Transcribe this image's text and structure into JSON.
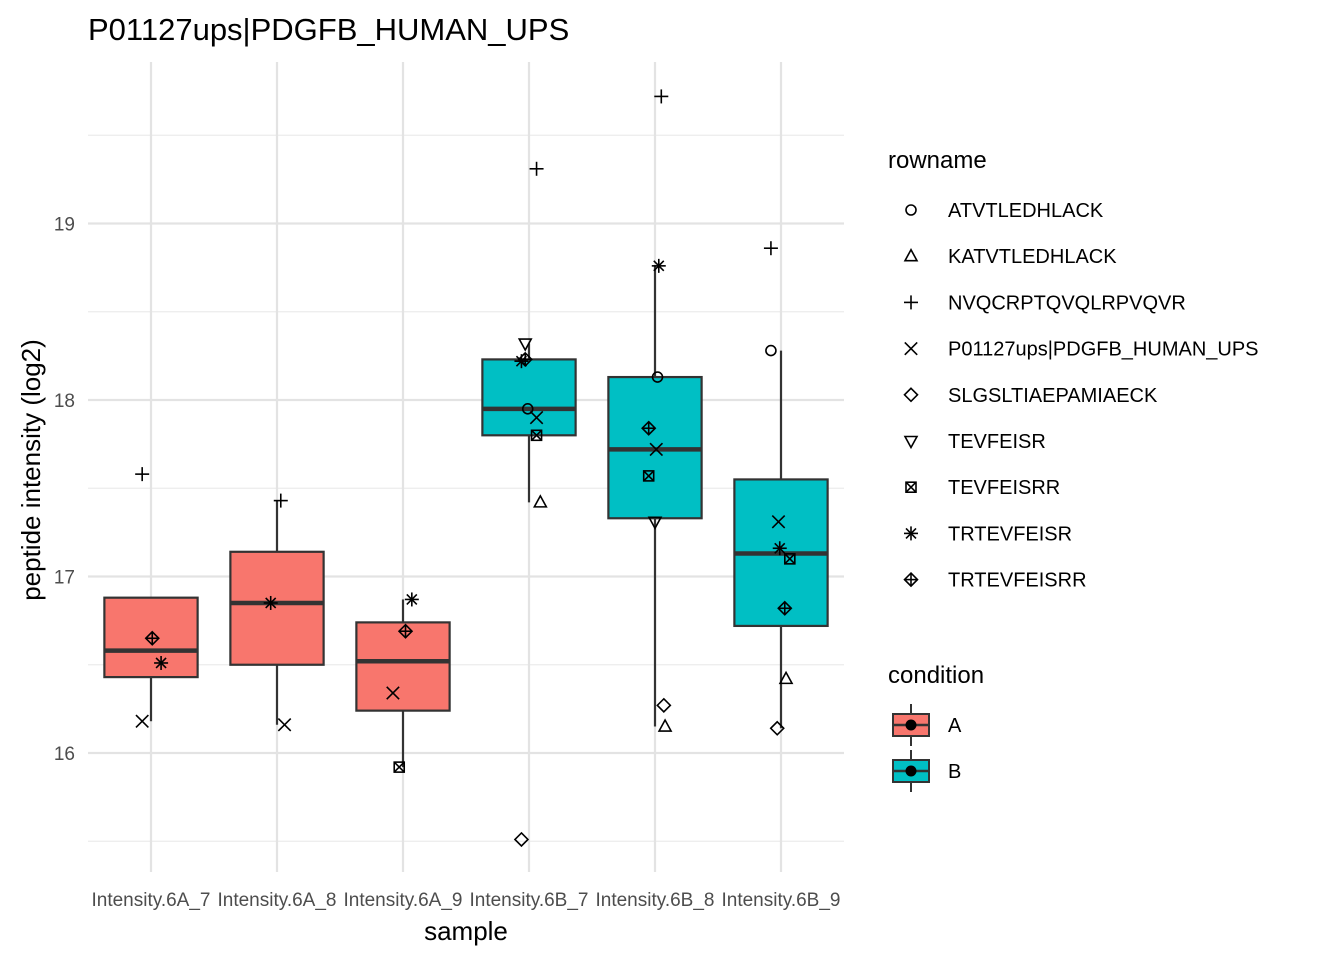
{
  "chart_data": {
    "type": "box",
    "title": "P01127ups|PDGFB_HUMAN_UPS",
    "xlabel": "sample",
    "ylabel": "peptide intensity (log2)",
    "ylim": [
      15.35,
      19.9
    ],
    "yticks": [
      16,
      17,
      18,
      19
    ],
    "grid": true,
    "legend_position": "right",
    "categories": [
      "Intensity.6A_7",
      "Intensity.6A_8",
      "Intensity.6A_9",
      "Intensity.6B_7",
      "Intensity.6B_8",
      "Intensity.6B_9"
    ],
    "conditions": [
      {
        "name": "A",
        "color": "#F8766D"
      },
      {
        "name": "B",
        "color": "#00BFC4"
      }
    ],
    "boxes": [
      {
        "sample": "Intensity.6A_7",
        "condition": "A",
        "whisker_low": 16.18,
        "q1": 16.43,
        "median": 16.58,
        "q3": 16.88,
        "whisker_high": 16.88
      },
      {
        "sample": "Intensity.6A_8",
        "condition": "A",
        "whisker_low": 16.16,
        "q1": 16.5,
        "median": 16.85,
        "q3": 17.14,
        "whisker_high": 17.43
      },
      {
        "sample": "Intensity.6A_9",
        "condition": "A",
        "whisker_low": 15.92,
        "q1": 16.24,
        "median": 16.52,
        "q3": 16.74,
        "whisker_high": 16.87
      },
      {
        "sample": "Intensity.6B_7",
        "condition": "B",
        "whisker_low": 17.42,
        "q1": 17.8,
        "median": 17.95,
        "q3": 18.23,
        "whisker_high": 18.32
      },
      {
        "sample": "Intensity.6B_8",
        "condition": "B",
        "whisker_low": 16.15,
        "q1": 17.33,
        "median": 17.72,
        "q3": 18.13,
        "whisker_high": 18.76
      },
      {
        "sample": "Intensity.6B_9",
        "condition": "B",
        "whisker_low": 16.14,
        "q1": 16.72,
        "median": 17.13,
        "q3": 17.55,
        "whisker_high": 18.28
      }
    ],
    "shape_legend_title": "rowname",
    "rownames": [
      {
        "name": "ATVTLEDHLACK",
        "shape": "circle"
      },
      {
        "name": "KATVTLEDHLACK",
        "shape": "triangle"
      },
      {
        "name": "NVQCRPTQVQLRPVQVR",
        "shape": "plus"
      },
      {
        "name": "P01127ups|PDGFB_HUMAN_UPS",
        "shape": "cross"
      },
      {
        "name": "SLGSLTIAEPAMIAECK",
        "shape": "diamond"
      },
      {
        "name": "TEVFEISR",
        "shape": "triangle-down"
      },
      {
        "name": "TEVFEISRR",
        "shape": "square-cross"
      },
      {
        "name": "TRTEVFEISR",
        "shape": "asterisk"
      },
      {
        "name": "TRTEVFEISRR",
        "shape": "diamond-plus"
      }
    ],
    "fill_legend_title": "condition",
    "points": [
      {
        "sample": "Intensity.6A_7",
        "rowname": "NVQCRPTQVQLRPVQVR",
        "y": 17.58,
        "jitter": -0.07
      },
      {
        "sample": "Intensity.6A_7",
        "rowname": "TRTEVFEISRR",
        "y": 16.65,
        "jitter": 0.01
      },
      {
        "sample": "Intensity.6A_7",
        "rowname": "TRTEVFEISR",
        "y": 16.51,
        "jitter": 0.08
      },
      {
        "sample": "Intensity.6A_7",
        "rowname": "P01127ups|PDGFB_HUMAN_UPS",
        "y": 16.18,
        "jitter": -0.07
      },
      {
        "sample": "Intensity.6A_8",
        "rowname": "NVQCRPTQVQLRPVQVR",
        "y": 17.43,
        "jitter": 0.03
      },
      {
        "sample": "Intensity.6A_8",
        "rowname": "TRTEVFEISR",
        "y": 16.85,
        "jitter": -0.05
      },
      {
        "sample": "Intensity.6A_8",
        "rowname": "P01127ups|PDGFB_HUMAN_UPS",
        "y": 16.16,
        "jitter": 0.06
      },
      {
        "sample": "Intensity.6A_9",
        "rowname": "TRTEVFEISR",
        "y": 16.87,
        "jitter": 0.07
      },
      {
        "sample": "Intensity.6A_9",
        "rowname": "TRTEVFEISRR",
        "y": 16.69,
        "jitter": 0.02
      },
      {
        "sample": "Intensity.6A_9",
        "rowname": "P01127ups|PDGFB_HUMAN_UPS",
        "y": 16.34,
        "jitter": -0.08
      },
      {
        "sample": "Intensity.6A_9",
        "rowname": "TEVFEISRR",
        "y": 15.92,
        "jitter": -0.03
      },
      {
        "sample": "Intensity.6B_7",
        "rowname": "NVQCRPTQVQLRPVQVR",
        "y": 19.31,
        "jitter": 0.06
      },
      {
        "sample": "Intensity.6B_7",
        "rowname": "TEVFEISR",
        "y": 18.32,
        "jitter": -0.03
      },
      {
        "sample": "Intensity.6B_7",
        "rowname": "TRTEVFEISRR",
        "y": 18.23,
        "jitter": -0.03
      },
      {
        "sample": "Intensity.6B_7",
        "rowname": "TRTEVFEISR",
        "y": 18.22,
        "jitter": -0.06
      },
      {
        "sample": "Intensity.6B_7",
        "rowname": "ATVTLEDHLACK",
        "y": 17.95,
        "jitter": -0.01
      },
      {
        "sample": "Intensity.6B_7",
        "rowname": "P01127ups|PDGFB_HUMAN_UPS",
        "y": 17.9,
        "jitter": 0.06
      },
      {
        "sample": "Intensity.6B_7",
        "rowname": "TEVFEISRR",
        "y": 17.8,
        "jitter": 0.06
      },
      {
        "sample": "Intensity.6B_7",
        "rowname": "KATVTLEDHLACK",
        "y": 17.42,
        "jitter": 0.09
      },
      {
        "sample": "Intensity.6B_7",
        "rowname": "SLGSLTIAEPAMIAECK",
        "y": 15.51,
        "jitter": -0.06
      },
      {
        "sample": "Intensity.6B_8",
        "rowname": "NVQCRPTQVQLRPVQVR",
        "y": 19.72,
        "jitter": 0.05
      },
      {
        "sample": "Intensity.6B_8",
        "rowname": "TRTEVFEISR",
        "y": 18.76,
        "jitter": 0.03
      },
      {
        "sample": "Intensity.6B_8",
        "rowname": "ATVTLEDHLACK",
        "y": 18.13,
        "jitter": 0.02
      },
      {
        "sample": "Intensity.6B_8",
        "rowname": "TRTEVFEISRR",
        "y": 17.84,
        "jitter": -0.05
      },
      {
        "sample": "Intensity.6B_8",
        "rowname": "P01127ups|PDGFB_HUMAN_UPS",
        "y": 17.72,
        "jitter": 0.01
      },
      {
        "sample": "Intensity.6B_8",
        "rowname": "TEVFEISRR",
        "y": 17.57,
        "jitter": -0.05
      },
      {
        "sample": "Intensity.6B_8",
        "rowname": "TEVFEISR",
        "y": 17.31,
        "jitter": 0.0
      },
      {
        "sample": "Intensity.6B_8",
        "rowname": "SLGSLTIAEPAMIAECK",
        "y": 16.27,
        "jitter": 0.07
      },
      {
        "sample": "Intensity.6B_8",
        "rowname": "KATVTLEDHLACK",
        "y": 16.15,
        "jitter": 0.08
      },
      {
        "sample": "Intensity.6B_9",
        "rowname": "NVQCRPTQVQLRPVQVR",
        "y": 18.86,
        "jitter": -0.08
      },
      {
        "sample": "Intensity.6B_9",
        "rowname": "ATVTLEDHLACK",
        "y": 18.28,
        "jitter": -0.08
      },
      {
        "sample": "Intensity.6B_9",
        "rowname": "P01127ups|PDGFB_HUMAN_UPS",
        "y": 17.31,
        "jitter": -0.02
      },
      {
        "sample": "Intensity.6B_9",
        "rowname": "TRTEVFEISR",
        "y": 17.16,
        "jitter": -0.01
      },
      {
        "sample": "Intensity.6B_9",
        "rowname": "TEVFEISRR",
        "y": 17.1,
        "jitter": 0.07
      },
      {
        "sample": "Intensity.6B_9",
        "rowname": "TRTEVFEISRR",
        "y": 16.82,
        "jitter": 0.03
      },
      {
        "sample": "Intensity.6B_9",
        "rowname": "KATVTLEDHLACK",
        "y": 16.42,
        "jitter": 0.04
      },
      {
        "sample": "Intensity.6B_9",
        "rowname": "SLGSLTIAEPAMIAECK",
        "y": 16.14,
        "jitter": -0.03
      }
    ]
  }
}
